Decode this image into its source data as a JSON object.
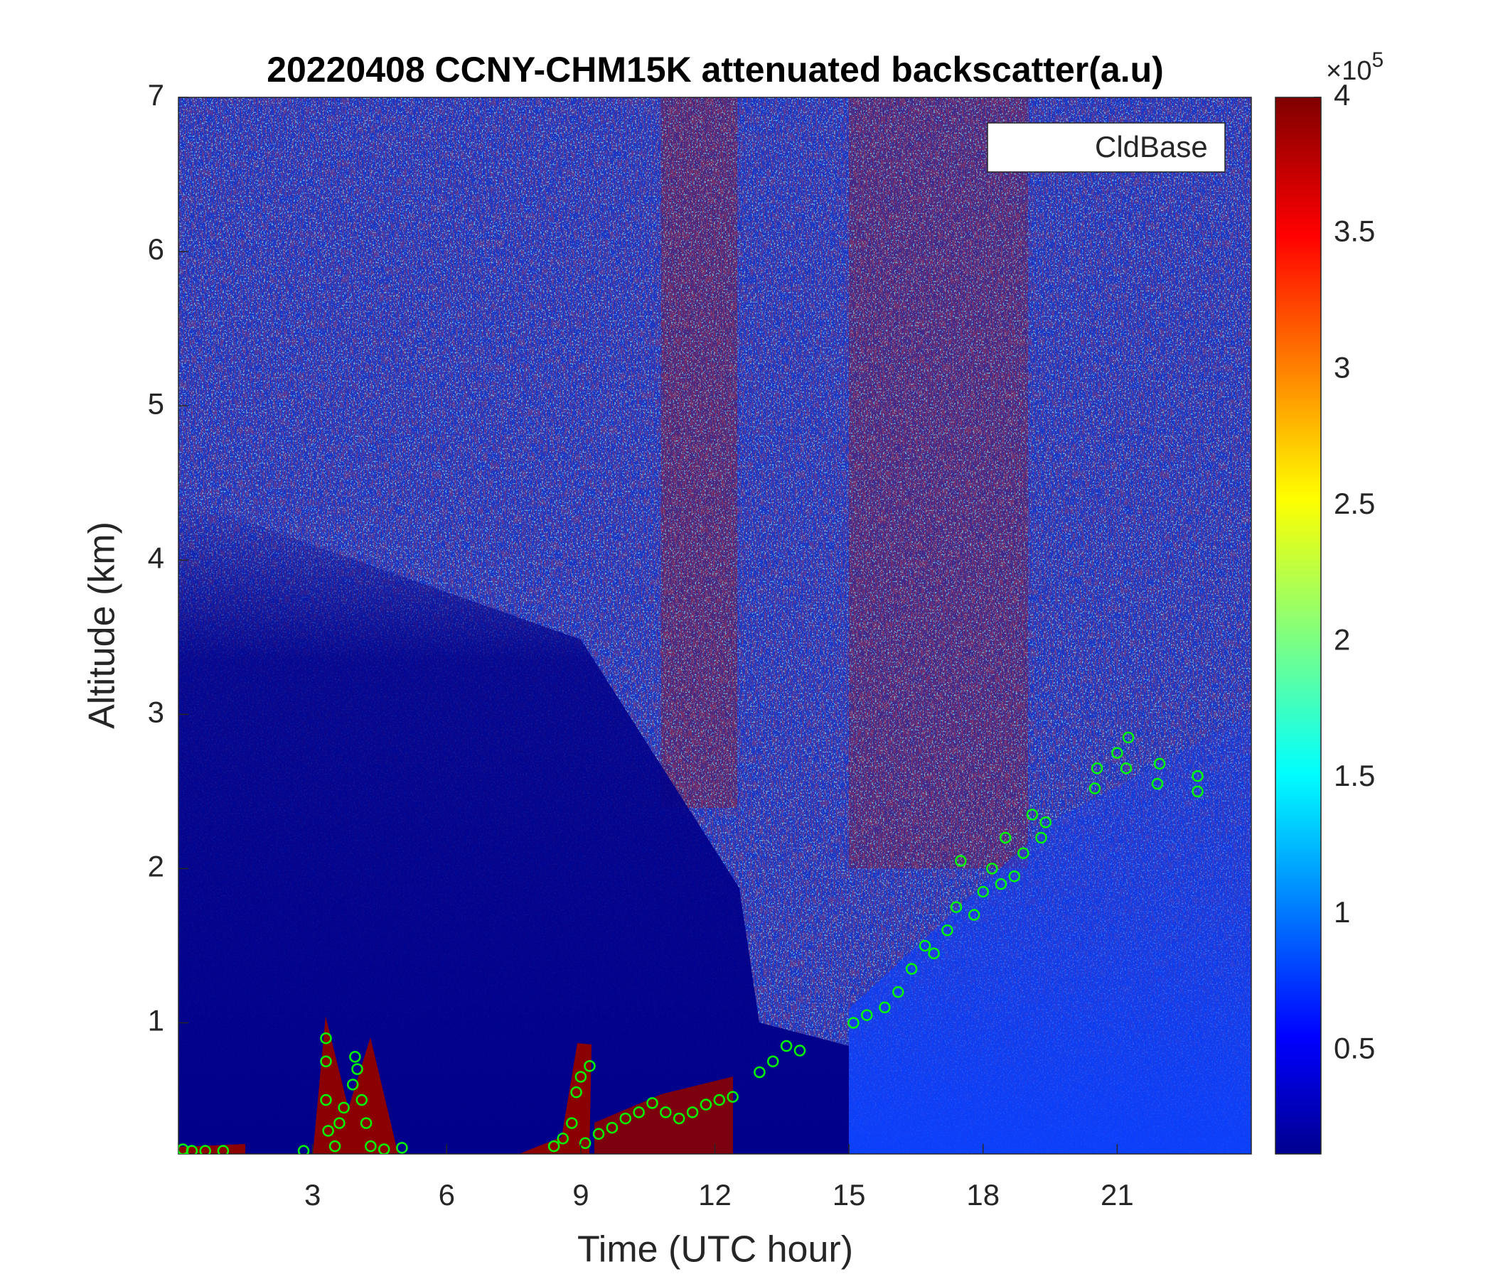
{
  "chart_data": {
    "type": "scatter",
    "title": "20220408 CCNY-CHM15K attenuated backscatter(a.u)",
    "x_label": "Time (UTC hour)",
    "y_label": "Altitude (km)",
    "xlim": [
      0,
      24
    ],
    "xticks": [
      3,
      6,
      9,
      12,
      15,
      18,
      21
    ],
    "ylim": [
      0.15,
      7
    ],
    "yticks": [
      1,
      2,
      3,
      4,
      5,
      6,
      7
    ],
    "clim": [
      0.12,
      4
    ],
    "cticks": [
      0.5,
      1,
      1.5,
      2,
      2.5,
      3,
      3.5,
      4
    ],
    "colorbar_scale_label": "×10",
    "colorbar_scale_exponent": "5",
    "legend_position": "upper right",
    "series": [
      {
        "name": "CldBase",
        "color": "#00ff00",
        "x": [
          0.1,
          0.3,
          0.6,
          1.0,
          2.8,
          3.3,
          3.3,
          3.3,
          3.35,
          3.5,
          3.6,
          3.7,
          3.9,
          3.95,
          4.0,
          4.1,
          4.2,
          4.3,
          4.6,
          5.0,
          8.4,
          8.6,
          8.8,
          8.9,
          9.0,
          9.2,
          9.1,
          9.4,
          9.7,
          10.0,
          10.3,
          10.6,
          10.9,
          11.2,
          11.5,
          11.8,
          12.1,
          12.4,
          13.0,
          13.3,
          13.6,
          13.9,
          15.1,
          15.4,
          15.8,
          16.1,
          16.4,
          16.7,
          16.9,
          17.2,
          17.4,
          17.5,
          17.8,
          18.0,
          18.2,
          18.4,
          18.5,
          18.7,
          18.9,
          19.1,
          19.3,
          19.4,
          20.5,
          20.55,
          21.0,
          21.2,
          21.25,
          21.9,
          21.95,
          22.8,
          22.8
        ],
        "values": [
          0.18,
          0.17,
          0.17,
          0.17,
          0.17,
          0.9,
          0.75,
          0.5,
          0.3,
          0.2,
          0.35,
          0.45,
          0.6,
          0.78,
          0.7,
          0.5,
          0.35,
          0.2,
          0.18,
          0.19,
          0.2,
          0.25,
          0.35,
          0.55,
          0.65,
          0.72,
          0.22,
          0.28,
          0.32,
          0.38,
          0.42,
          0.48,
          0.42,
          0.38,
          0.42,
          0.47,
          0.5,
          0.52,
          0.68,
          0.75,
          0.85,
          0.82,
          1.0,
          1.05,
          1.1,
          1.2,
          1.35,
          1.5,
          1.45,
          1.6,
          1.75,
          2.05,
          1.7,
          1.85,
          2.0,
          1.9,
          2.2,
          1.95,
          2.1,
          2.35,
          2.2,
          2.3,
          2.52,
          2.65,
          2.75,
          2.65,
          2.85,
          2.55,
          2.68,
          2.5,
          2.6
        ]
      }
    ]
  }
}
